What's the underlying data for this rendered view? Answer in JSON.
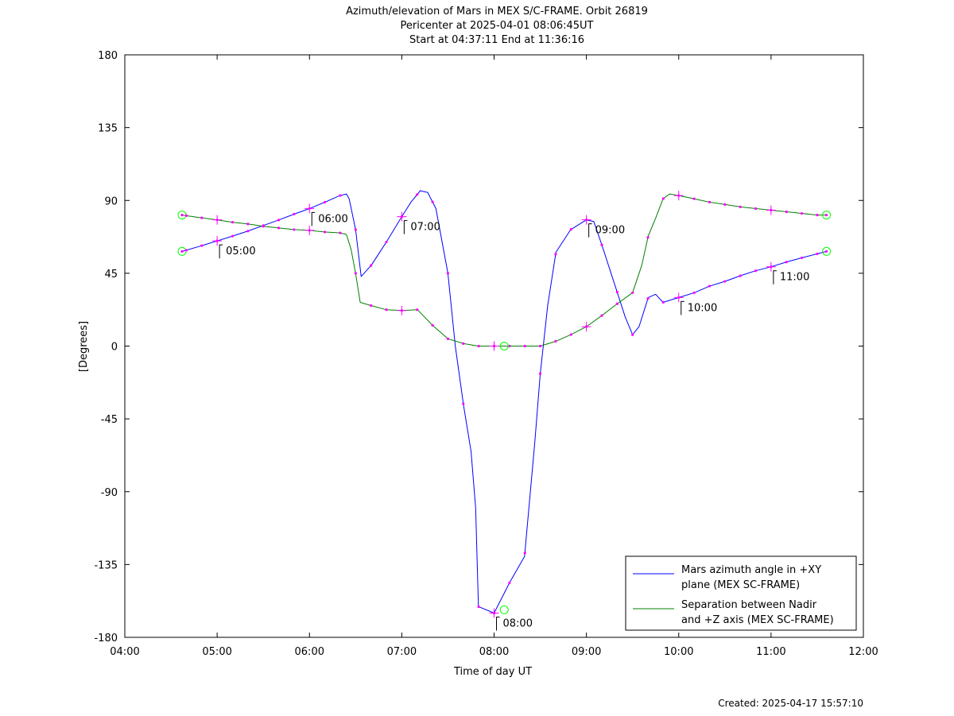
{
  "chart_data": {
    "type": "line",
    "title_lines": [
      "Azimuth/elevation of Mars in MEX S/C-FRAME.  Orbit 26819",
      "Pericenter at 2025-04-01 08:06:45UT",
      "Start at 04:37:11 End at 11:36:16"
    ],
    "xlabel": "Time of day UT",
    "ylabel": "[Degrees]",
    "xlim": [
      4.0,
      12.0
    ],
    "ylim": [
      -180,
      180
    ],
    "x_ticks": [
      4,
      5,
      6,
      7,
      8,
      9,
      10,
      11,
      12
    ],
    "x_tick_labels": [
      "04:00",
      "05:00",
      "06:00",
      "07:00",
      "08:00",
      "09:00",
      "10:00",
      "11:00",
      "12:00"
    ],
    "y_ticks": [
      180,
      135,
      90,
      45,
      0,
      -45,
      -90,
      -135,
      -180
    ],
    "y_tick_labels": [
      "180",
      "135",
      "90",
      "45",
      "0",
      "-45",
      "-90",
      "-135",
      "-180"
    ],
    "grid": false,
    "legend_position": "bottom-right",
    "series": [
      {
        "name": "Mars azimuth angle in +XY plane (MEX SC-FRAME)",
        "legend_lines": [
          "Mars azimuth angle in +XY",
          "plane (MEX SC-FRAME)"
        ],
        "color": "#0000ff",
        "x": [
          4.62,
          4.8,
          5.0,
          5.17,
          5.33,
          5.5,
          5.67,
          5.83,
          6.0,
          6.17,
          6.33,
          6.4,
          6.43,
          6.5,
          6.56,
          6.67,
          6.83,
          7.0,
          7.1,
          7.2,
          7.28,
          7.37,
          7.5,
          7.58,
          7.67,
          7.75,
          7.8,
          7.83,
          8.0,
          8.17,
          8.33,
          8.44,
          8.5,
          8.58,
          8.67,
          8.83,
          9.0,
          9.08,
          9.17,
          9.33,
          9.42,
          9.5,
          9.57,
          9.67,
          9.75,
          9.83,
          10.0,
          10.17,
          10.33,
          10.5,
          10.67,
          10.83,
          11.0,
          11.17,
          11.33,
          11.5,
          11.6
        ],
        "y": [
          58.5,
          61.5,
          65.0,
          68.0,
          71.0,
          74.5,
          78.0,
          81.5,
          85.0,
          89.0,
          93.0,
          94.0,
          91.0,
          72.0,
          43.0,
          50.0,
          64.0,
          80.0,
          89.0,
          96.0,
          95.0,
          85.0,
          45.0,
          0.0,
          -37.0,
          -65.0,
          -100.0,
          -161.0,
          -165.0,
          -146.0,
          -130.0,
          -60.0,
          -17.0,
          25.0,
          58.0,
          72.0,
          78.0,
          77.0,
          62.0,
          34.0,
          18.0,
          7.0,
          12.0,
          30.0,
          32.0,
          27.0,
          30.0,
          33.0,
          37.0,
          40.0,
          43.5,
          46.5,
          49.0,
          52.0,
          54.5,
          57.0,
          58.5
        ]
      },
      {
        "name": "Separation between Nadir and +Z axis (MEX SC-FRAME)",
        "legend_lines": [
          "Separation between Nadir",
          "and +Z axis (MEX SC-FRAME)"
        ],
        "color": "#008000",
        "x": [
          4.62,
          4.8,
          5.0,
          5.17,
          5.33,
          5.5,
          5.67,
          5.83,
          6.0,
          6.17,
          6.33,
          6.4,
          6.45,
          6.5,
          6.55,
          6.67,
          6.83,
          7.0,
          7.17,
          7.33,
          7.5,
          7.67,
          7.83,
          8.0,
          8.17,
          8.33,
          8.5,
          8.67,
          8.83,
          9.0,
          9.17,
          9.33,
          9.5,
          9.6,
          9.67,
          9.75,
          9.83,
          9.9,
          10.0,
          10.17,
          10.33,
          10.5,
          10.67,
          10.83,
          11.0,
          11.17,
          11.33,
          11.5,
          11.6
        ],
        "y": [
          81.0,
          79.5,
          78.0,
          76.5,
          75.5,
          74.0,
          73.0,
          72.0,
          71.5,
          70.5,
          70.0,
          69.0,
          60.0,
          45.0,
          27.0,
          25.0,
          22.5,
          22.0,
          22.5,
          13.0,
          4.5,
          1.5,
          0.0,
          0.0,
          0.0,
          0.0,
          0.0,
          3.0,
          7.0,
          12.0,
          19.0,
          26.0,
          33.0,
          50.0,
          68.0,
          79.0,
          91.0,
          94.0,
          93.0,
          91.0,
          89.0,
          87.5,
          86.0,
          85.0,
          84.0,
          83.0,
          82.0,
          81.0,
          81.0
        ]
      }
    ],
    "markers": {
      "dot_color": "#ff00ff",
      "dot_interval_minutes": 10,
      "hour_marker": "plus",
      "endpoint_marker": "circle",
      "endpoint_color": "#00ff00"
    },
    "annotations": [
      {
        "label": "05:00",
        "x": 5.0,
        "y": 65.0
      },
      {
        "label": "06:00",
        "x": 6.0,
        "y": 85.0
      },
      {
        "label": "07:00",
        "x": 7.0,
        "y": 80.0
      },
      {
        "label": "08:00",
        "x": 8.0,
        "y": -165.0
      },
      {
        "label": "09:00",
        "x": 9.0,
        "y": 78.0
      },
      {
        "label": "10:00",
        "x": 10.0,
        "y": 30.0
      },
      {
        "label": "11:00",
        "x": 11.0,
        "y": 49.0
      }
    ],
    "pericenter_marker": {
      "x": 8.11,
      "azimuth": -163.0,
      "separation": 0.0
    }
  },
  "footer": {
    "created": "Created: 2025-04-17 15:57:10"
  }
}
